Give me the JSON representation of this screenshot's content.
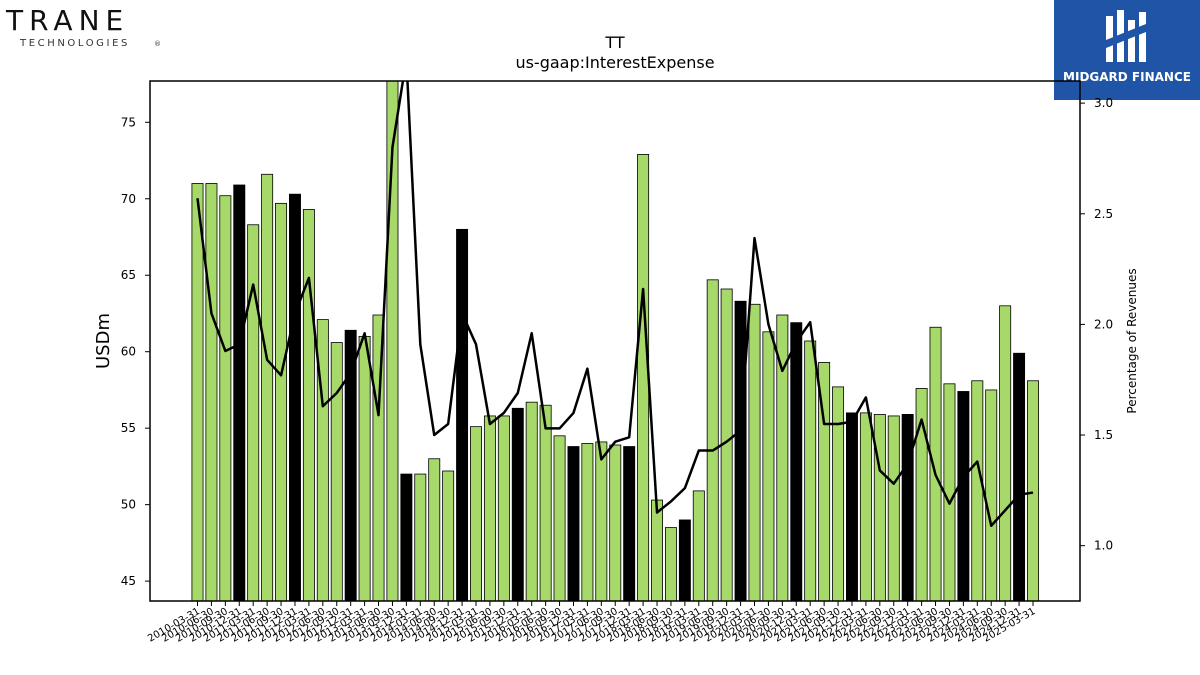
{
  "brand": {
    "left_logo_word": "TRANE",
    "left_logo_sub": "TECHNOLOGIES",
    "left_logo_mark": "®",
    "right_logo_text": "MIDGARD FINANCE"
  },
  "colors": {
    "bar_default": "#a6d96a",
    "bar_highlight": "#000000",
    "line": "#000000",
    "logo_bg": "#1f54a6"
  },
  "chart_data": {
    "type": "bar",
    "title": "TT",
    "subtitle": "us-gaap:InterestExpense",
    "ylabel": "USDm",
    "ylabel_right": "Percentage of Revenues",
    "ylim": [
      43.7,
      77.7
    ],
    "yticks": [
      45,
      50,
      55,
      60,
      65,
      70,
      75
    ],
    "ylim_right": [
      0.75,
      3.1
    ],
    "yticks_right": [
      1.0,
      1.5,
      2.0,
      2.5,
      3.0
    ],
    "grid": false,
    "categories": [
      "2010-03-31",
      "2010-06-30",
      "2010-09-30",
      "2010-12-31",
      "2011-03-31",
      "2011-06-30",
      "2011-09-30",
      "2011-12-31",
      "2012-03-31",
      "2012-06-30",
      "2012-09-30",
      "2012-12-31",
      "2013-03-31",
      "2013-06-30",
      "2013-09-30",
      "2013-12-31",
      "2014-03-31",
      "2014-06-30",
      "2014-09-30",
      "2014-12-31",
      "2015-03-31",
      "2015-06-30",
      "2015-09-30",
      "2015-12-31",
      "2016-03-31",
      "2016-06-30",
      "2016-09-30",
      "2016-12-31",
      "2017-03-31",
      "2017-06-30",
      "2017-09-30",
      "2017-12-31",
      "2018-03-31",
      "2018-06-30",
      "2018-09-30",
      "2018-12-31",
      "2019-03-31",
      "2019-06-30",
      "2019-09-30",
      "2019-12-31",
      "2020-03-31",
      "2020-06-30",
      "2020-09-30",
      "2020-12-31",
      "2021-03-31",
      "2021-06-30",
      "2021-09-30",
      "2021-12-31",
      "2022-03-31",
      "2022-06-30",
      "2022-09-30",
      "2022-12-31",
      "2023-03-31",
      "2023-06-30",
      "2023-09-30",
      "2023-12-31",
      "2024-03-31",
      "2024-06-30",
      "2024-09-30",
      "2024-12-31",
      "2025-03-31"
    ],
    "tick_labels": [
      "2010-03-31",
      "2010-06-30",
      "2010-09-30",
      "2010-12-31",
      "2011-03-31",
      "2011-06-30",
      "2011-09-30",
      "2011-12-31",
      "2012-03-31",
      "2012-06-30",
      "2012-09-30",
      "2012-12-31",
      "2013-03-31",
      "2013-06-30",
      "2013-09-30",
      "2013-12-31",
      "2014-03-31",
      "2014-06-30",
      "2014-09-30",
      "2014-12-31",
      "2015-03-31",
      "2015-06-30",
      "2015-09-30",
      "2015-12-31",
      "2016-03-31",
      "2016-06-30",
      "2016-09-30",
      "2016-12-31",
      "2017-03-31",
      "2017-06-30",
      "2017-09-30",
      "2017-12-31",
      "2018-03-31",
      "2018-06-30",
      "2018-09-30",
      "2018-12-31",
      "2019-03-31",
      "2019-06-30",
      "2019-09-30",
      "2019-12-31",
      "2020-03-31",
      "2020-06-30",
      "2020-09-30",
      "2020-12-31",
      "2021-03-31",
      "2021-06-30",
      "2021-09-30",
      "2021-12-31",
      "2022-03-31",
      "2022-06-30",
      "2022-09-30",
      "2022-12-31",
      "2023-03-31",
      "2023-06-30",
      "2023-09-30",
      "2023-12-31",
      "2024-03-31",
      "2024-06-30",
      "2024-09-30",
      "2024-12-31",
      "2025-03-31"
    ],
    "series": [
      {
        "type": "bar",
        "axis": "left",
        "values": [
          71.0,
          71.0,
          70.2,
          70.9,
          68.3,
          71.6,
          69.7,
          70.3,
          69.3,
          62.1,
          60.6,
          61.4,
          61.0,
          62.4,
          77.8,
          52.0,
          52.0,
          53.0,
          52.2,
          68.0,
          55.1,
          55.8,
          55.8,
          56.3,
          56.7,
          56.5,
          54.5,
          53.8,
          54.0,
          54.1,
          53.9,
          53.8,
          72.9,
          50.3,
          48.5,
          49.0,
          50.9,
          64.7,
          64.1,
          63.3,
          63.1,
          61.3,
          62.4,
          61.9,
          60.7,
          59.3,
          57.7,
          56.0,
          56.0,
          55.9,
          55.8,
          55.9,
          57.6,
          61.6,
          57.9,
          57.4,
          58.1,
          57.5,
          63.0,
          59.9,
          58.1
        ],
        "highlight": [
          false,
          false,
          false,
          true,
          false,
          false,
          false,
          true,
          false,
          false,
          false,
          true,
          false,
          false,
          false,
          true,
          false,
          false,
          false,
          true,
          false,
          false,
          false,
          true,
          false,
          false,
          false,
          true,
          false,
          false,
          false,
          true,
          false,
          false,
          false,
          true,
          false,
          false,
          false,
          true,
          false,
          false,
          false,
          true,
          false,
          false,
          false,
          true,
          false,
          false,
          false,
          true,
          false,
          false,
          false,
          true,
          false,
          false,
          false,
          true,
          false
        ]
      },
      {
        "type": "line",
        "axis": "right",
        "values": [
          2.57,
          2.05,
          1.88,
          1.91,
          2.18,
          1.84,
          1.77,
          2.05,
          2.21,
          1.63,
          1.69,
          1.78,
          1.96,
          1.59,
          2.8,
          3.2,
          1.91,
          1.5,
          1.55,
          2.05,
          1.91,
          1.55,
          1.6,
          1.69,
          1.96,
          1.53,
          1.53,
          1.6,
          1.8,
          1.39,
          1.47,
          1.49,
          2.16,
          1.15,
          1.2,
          1.26,
          1.43,
          1.43,
          1.47,
          1.52,
          2.39,
          2.0,
          1.79,
          1.92,
          2.01,
          1.55,
          1.55,
          1.56,
          1.67,
          1.34,
          1.28,
          1.37,
          1.57,
          1.32,
          1.19,
          1.31,
          1.38,
          1.09,
          1.16,
          1.23,
          1.24
        ]
      }
    ]
  }
}
